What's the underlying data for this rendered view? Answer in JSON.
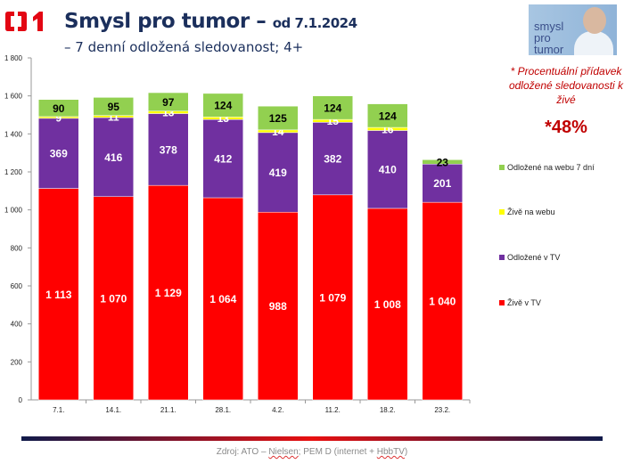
{
  "header": {
    "logo_text": "ČT1",
    "title": "Smysl pro tumor –",
    "title_suffix": "od 7.1.2024",
    "subtitle": "– 7 denní odložená sledovanost; 4+"
  },
  "promo": {
    "logo_text": "smysl pro tumor"
  },
  "note": {
    "text": "* Procentuální přídavek odložené sledovanosti k živé",
    "value": "*48%"
  },
  "source": {
    "prefix": "Zdroj: ATO – ",
    "nielsen": "Nielsen",
    "middle": "; PEM D (internet + ",
    "hbbtv": "HbbTV",
    "suffix": ")"
  },
  "chart_data": {
    "type": "bar",
    "stacked": true,
    "categories": [
      "7.1.",
      "14.1.",
      "21.1.",
      "28.1.",
      "4.2.",
      "11.2.",
      "18.2.",
      "23.2."
    ],
    "ylim": [
      0,
      1800
    ],
    "yticks": [
      0,
      200,
      400,
      600,
      800,
      1000,
      1200,
      1400,
      1600,
      1800
    ],
    "ytick_labels": [
      "0",
      "200",
      "400",
      "600",
      "800",
      "1 000",
      "1 200",
      "1 400",
      "1 600",
      "1 800"
    ],
    "grid": false,
    "legend_position": "right",
    "series": [
      {
        "name": "Živě v TV",
        "color": "#ff0000",
        "values": [
          1113,
          1070,
          1129,
          1064,
          988,
          1079,
          1008,
          1040
        ],
        "labels": [
          "1 113",
          "1 070",
          "1 129",
          "1 064",
          "988",
          "1 079",
          "1 008",
          "1 040"
        ],
        "label_color": "#ffffff"
      },
      {
        "name": "Odložené v TV",
        "color": "#7030a0",
        "values": [
          369,
          416,
          378,
          412,
          419,
          382,
          410,
          201
        ],
        "labels": [
          "369",
          "416",
          "378",
          "412",
          "419",
          "382",
          "410",
          "201"
        ],
        "label_color": "#ffffff"
      },
      {
        "name": "Živě na webu",
        "color": "#ffff00",
        "values": [
          9,
          11,
          13,
          13,
          14,
          15,
          16,
          null
        ],
        "labels": [
          "9",
          "11",
          "13",
          "13",
          "14",
          "15",
          "16",
          ""
        ],
        "label_color": "#ffffff"
      },
      {
        "name": "Odložené na webu 7 dní",
        "color": "#92d050",
        "values": [
          90,
          95,
          97,
          124,
          125,
          124,
          124,
          23
        ],
        "labels": [
          "90",
          "95",
          "97",
          "124",
          "125",
          "124",
          "124",
          "23"
        ],
        "label_color": "#000000"
      }
    ]
  }
}
